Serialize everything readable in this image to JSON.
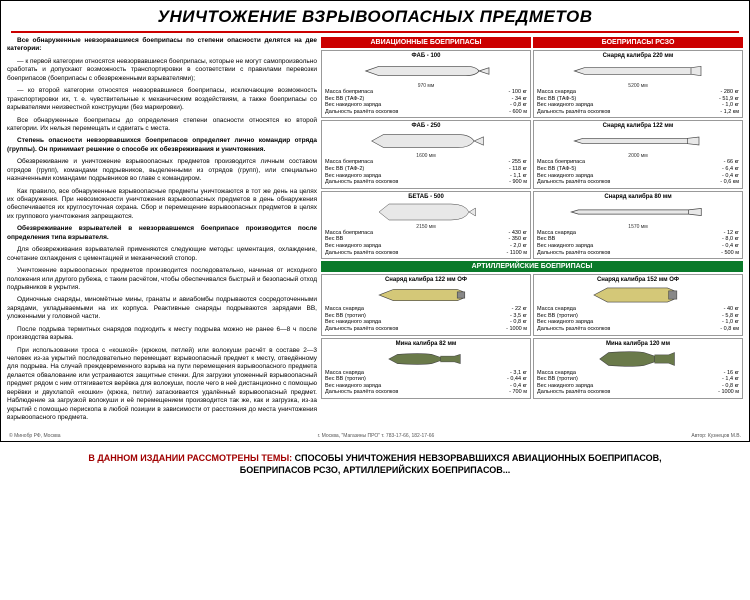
{
  "title": "УНИЧТОЖЕНИЕ ВЗРЫВООПАСНЫХ ПРЕДМЕТОВ",
  "text": {
    "p1": "Все обнаруженные невзорвавшиеся боеприпасы по степени опасности делятся на две категории:",
    "p2": "— к первой категории относятся невзорвавшиеся боеприпасы, которые не могут самопроизвольно сработать и допускают возможность транспортировки в соответствии с правилами перевозки боеприпасов (боеприпасы с обезвреженными взрывателями);",
    "p3": "— ко второй категории относятся невзорвавшиеся боеприпасы, исключающие возможность транспортировки их, т. е. чувствительные к механическим воздействиям, а также боеприпасы со взрывателями неизвестной конструкции (без маркировки).",
    "p4": "Все обнаруженные боеприпасы до определения степени опасности относятся ко второй категории. Их нельзя перемещать и сдвигать с места.",
    "p5": "Степень опасности невзорвавшихся боеприпасов определяет лично командир отряда (группы). Он принимает решение о способе их обезвреживания и уничтожения.",
    "p6": "Обезвреживание и уничтожение взрывоопасных предметов производится личным составом отрядов (групп), командами подрывников, выделенными из отрядов (групп), или специально назначенными командами подрывников во главе с командиром.",
    "p7": "Как правило, все обнаруженные взрывоопасные предметы уничтожаются в тот же день на целях их обнаружения. При невозможности уничтожения взрывоопасных предметов в день обнаружения обеспечивается их круглосуточная охрана. Сбор и перемещение взрывоопасных предметов в целях их группового уничтожения запрещаются.",
    "p8": "Обезвреживание взрывателей в невзорвавшемся боеприпасе производится после определения типа взрывателя.",
    "p9": "Для обезвреживания взрывателей применяются следующие методы: цементация, охлаждение, сочетание охлаждения с цементацией и механический стопор.",
    "p10": "Уничтожение взрывоопасных предметов производится последовательно, начиная от исходного положения или другого рубежа, с таким расчётом, чтобы обеспечивался быстрый и безопасный отход подрывников в укрытия.",
    "p11": "Одиночные снаряды, миномётные мины, гранаты и авиабомбы подрываются сосредоточенными зарядами, укладываемыми на их корпуса. Реактивные снаряды подрываются зарядами ВВ, уложенными у головной части.",
    "p12": "После подрыва термитных снарядов подходить к месту подрыва можно не ранее 6—8 ч после производства взрыва.",
    "p13": "При использовании троса с «кошкой» (крюком, петлей) или волокуши расчёт в составе 2—3 человек из-за укрытий последовательно перемещает взрывоопасный предмет к месту, отведённому для подрыва. На случай преждевременного взрыва на пути перемещения взрывоопасного предмета делается обвалование или устраиваются защитные стенки. Для загрузки уложенный взрывоопасный предмет рядом с ним оттягивается верёвка для волокуши, после чего в неё дистанционно с помощью верёвки и двухлапой «кошки» (крюка, петли) затаскивается удалённый взрывоопасный предмет. Наблюдение за загрузкой волокуши и её перемещением производится так же, как и загрузка, из-за укрытий с помощью перископа в любой позиции в зависимости от расстояния до места уничтожения взрывоопасного предмета."
  },
  "sections": {
    "avia": {
      "header": "АВИАЦИОННЫЕ БОЕПРИПАСЫ",
      "color": "#c00000"
    },
    "rszo": {
      "header": "БОЕПРИПАСЫ РСЗО",
      "color": "#c00000"
    },
    "arty": {
      "header": "АРТИЛЛЕРИЙСКИЕ БОЕПРИПАСЫ",
      "color": "#0a7a2a"
    }
  },
  "items": {
    "fab100": {
      "title": "ФАБ - 100",
      "dim": "970 мм",
      "specs": [
        [
          "Масса боеприпаса",
          "- 100 кг"
        ],
        [
          "Вес ВВ (ТАФ-2)",
          "- 34 кг"
        ],
        [
          "Вес накидного заряда",
          "- 0,8 кг"
        ],
        [
          "Дальность разлёта осколков",
          "- 600 м"
        ]
      ]
    },
    "fab250": {
      "title": "ФАБ - 250",
      "dim": "1600 мм",
      "specs": [
        [
          "Масса боеприпаса",
          "- 255 кг"
        ],
        [
          "Вес ВВ (ТАФ-2)",
          "- 118 кг"
        ],
        [
          "Вес накидного заряда",
          "- 1,1 кг"
        ],
        [
          "Дальность разлёта осколков",
          "- 900 м"
        ]
      ]
    },
    "betab500": {
      "title": "БЕТАБ - 500",
      "dim": "2150 мм",
      "specs": [
        [
          "Масса боеприпаса",
          "- 430 кг"
        ],
        [
          "Вес ВВ",
          "- 350 кг"
        ],
        [
          "Вес накидного заряда",
          "- 2,0 кг"
        ],
        [
          "Дальность разлёта осколков",
          "- 1100 м"
        ]
      ]
    },
    "r220": {
      "title": "Снаряд калибра 220 мм",
      "dim": "5200 мм",
      "specs": [
        [
          "Масса снаряда",
          "- 280 кг"
        ],
        [
          "Вес ВВ (ТАФ-5)",
          "- 51,9 кг"
        ],
        [
          "Вес накидного заряда",
          "- 1,0 кг"
        ],
        [
          "Дальность разлёта осколков",
          "- 1,2 км"
        ]
      ]
    },
    "r122": {
      "title": "Снаряд калибра 122 мм",
      "dim": "2000 мм",
      "specs": [
        [
          "Масса боеприпаса",
          "- 66 кг"
        ],
        [
          "Вес ВВ (ТАФ-5)",
          "- 6,4 кг"
        ],
        [
          "Вес накидного заряда",
          "- 0,4 кг"
        ],
        [
          "Дальность разлёта осколков",
          "- 0,6 км"
        ]
      ]
    },
    "r80": {
      "title": "Снаряд калибра 80 мм",
      "dim": "1570 мм",
      "specs": [
        [
          "Масса снаряда",
          "- 12 кг"
        ],
        [
          "Вес ВВ",
          "- 8,0 кг"
        ],
        [
          "Вес накидного заряда",
          "- 0,4 кг"
        ],
        [
          "Дальность разлёта осколков",
          "- 500 м"
        ]
      ]
    },
    "a122": {
      "title": "Снаряд калибра 122 мм ОФ",
      "specs": [
        [
          "Масса снаряда",
          "- 22 кг"
        ],
        [
          "Вес ВВ (тротил)",
          "- 3,5 кг"
        ],
        [
          "Вес накидного заряда",
          "- 0,8 кг"
        ],
        [
          "Дальность разлёта осколков",
          "- 1000 м"
        ]
      ]
    },
    "a152": {
      "title": "Снаряд калибра 152 мм ОФ",
      "specs": [
        [
          "Масса снаряда",
          "- 40 кг"
        ],
        [
          "Вес ВВ (тротил)",
          "- 5,8 кг"
        ],
        [
          "Вес накидного заряда",
          "- 1,0 кг"
        ],
        [
          "Дальность разлёта осколков",
          "- 0,8 км"
        ]
      ]
    },
    "m82": {
      "title": "Мина калибра 82 мм",
      "specs": [
        [
          "Масса снаряда",
          "- 3,1 кг"
        ],
        [
          "Вес ВВ (тротил)",
          "- 0,44 кг"
        ],
        [
          "Вес накидного заряда",
          "- 0,4 кг"
        ],
        [
          "Дальность разлёта осколков",
          "- 700 м"
        ]
      ]
    },
    "m120": {
      "title": "Мина калибра 120 мм",
      "specs": [
        [
          "Масса снаряда",
          "- 16 кг"
        ],
        [
          "Вес ВВ (тротил)",
          "- 1,4 кг"
        ],
        [
          "Вес накидного заряда",
          "- 0,8 кг"
        ],
        [
          "Дальность разлёта осколков",
          "- 1000 м"
        ]
      ]
    }
  },
  "publisher": {
    "left": "© Минобр РФ, Москва",
    "center": "г. Москва, \"Магазины ПРО\"   т. 783-17-66, 182-17-66",
    "right": "Автор: Кузнецов М.В."
  },
  "footer": {
    "lead": "В ДАННОМ ИЗДАНИИ РАССМОТРЕНЫ ТЕМЫ: ",
    "rest1": "СПОСОБЫ УНИЧТОЖЕНИЯ НЕВЗОРВАВШИХСЯ АВИАЦИОННЫХ БОЕПРИПАСОВ,",
    "rest2": "БОЕПРИПАСОВ РСЗО, АРТИЛЛЕРИЙСКИХ БОЕПРИПАСОВ..."
  },
  "colors": {
    "red": "#c00000",
    "green": "#0a7a2a",
    "bomb_fill": "#e8e8e8",
    "bomb_stroke": "#444"
  }
}
